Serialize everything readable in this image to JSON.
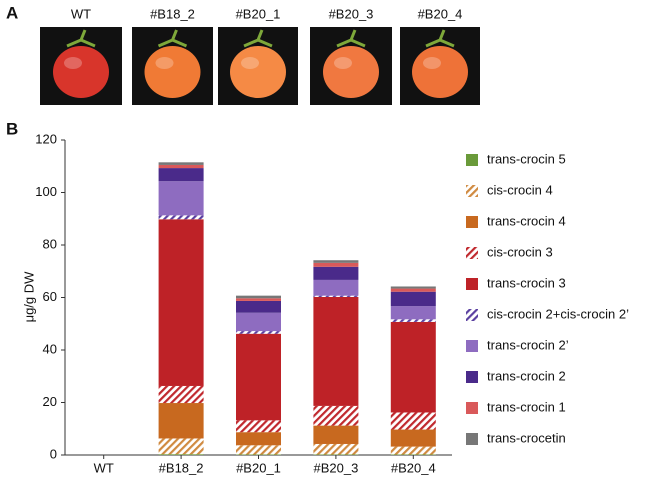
{
  "panel_a": {
    "label": "A",
    "photo_labels": [
      "WT",
      "#B18_2",
      "#B20_1",
      "#B20_3",
      "#B20_4"
    ]
  },
  "panel_b": {
    "label": "B"
  },
  "chart_data": {
    "type": "stacked_bar",
    "ylabel": "μg/g DW",
    "categories": [
      "WT",
      "#B18_2",
      "#B20_1",
      "#B20_3",
      "#B20_4"
    ],
    "ylim": [
      0,
      120
    ],
    "yticks": [
      0,
      20,
      40,
      60,
      80,
      100,
      120
    ],
    "grid": false,
    "series": [
      {
        "name": "trans-crocin 5",
        "color": "#6a9a3a",
        "hatched": false,
        "values": [
          0,
          0.3,
          0.2,
          0.2,
          0.2
        ]
      },
      {
        "name": "cis-crocin 4",
        "color": "#d08a40",
        "hatched": true,
        "values": [
          0,
          6,
          3.5,
          4,
          3
        ]
      },
      {
        "name": "trans-crocin 4",
        "color": "#c8691f",
        "hatched": false,
        "values": [
          0,
          13.5,
          5,
          7,
          6.5
        ]
      },
      {
        "name": "cis-crocin 3",
        "color": "#c0282d",
        "hatched": true,
        "values": [
          0,
          6.5,
          4.5,
          7.5,
          6.5
        ]
      },
      {
        "name": "trans-crocin 3",
        "color": "#be2227",
        "hatched": false,
        "values": [
          0,
          63.5,
          33,
          41.5,
          34.5
        ]
      },
      {
        "name": "cis-crocin 2+cis-crocin 2’",
        "color": "#5a3fa0",
        "hatched": true,
        "values": [
          0,
          1.5,
          1,
          0.5,
          1
        ]
      },
      {
        "name": "trans-crocin 2’",
        "color": "#8e6cc0",
        "hatched": false,
        "values": [
          0,
          13,
          7,
          6,
          5
        ]
      },
      {
        "name": "trans-crocin 2",
        "color": "#4a2a8a",
        "hatched": false,
        "values": [
          0,
          5,
          4.5,
          5,
          5.5
        ]
      },
      {
        "name": "trans-crocin 1",
        "color": "#d9595a",
        "hatched": false,
        "values": [
          0,
          1.2,
          1,
          1.5,
          1.2
        ]
      },
      {
        "name": "trans-crocetin",
        "color": "#777777",
        "hatched": false,
        "values": [
          0,
          1,
          1,
          1,
          0.8
        ]
      }
    ]
  }
}
